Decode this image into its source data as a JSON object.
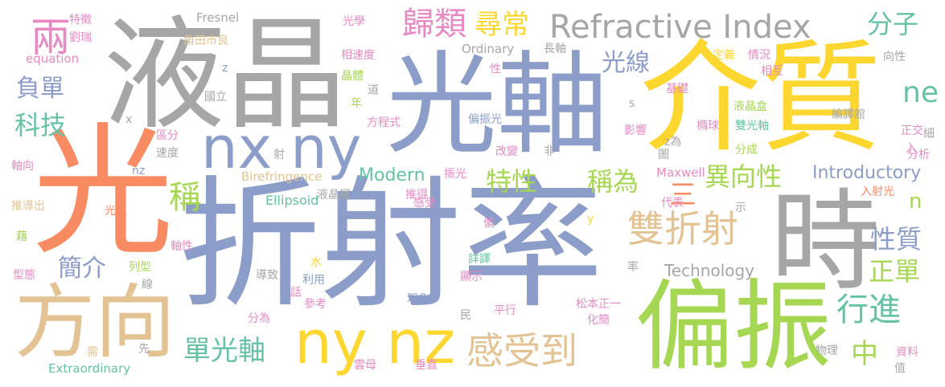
{
  "palette": {
    "blue": "#8b9dc8",
    "gray": "#a6a6a6",
    "orange": "#f98b62",
    "yellow": "#fed630",
    "green": "#a6d752",
    "tan": "#e3c393",
    "teal": "#66c2a5",
    "pink": "#e78ac3"
  },
  "words": {
    "w01": "折射率",
    "w02": "液晶",
    "w03": "光軸",
    "w04": "介質",
    "w05": "光",
    "w06": "時",
    "w07": "偏振",
    "w08": "方向",
    "w09": "nx ny",
    "w10": "ny nz",
    "w11": "雙折射",
    "w12": "感受到",
    "w13": "Refractive Index",
    "w14": "歸類",
    "w15": "尋常",
    "w16": "分子",
    "w17": "兩",
    "w18": "光線",
    "w19": "ne",
    "w20": "負單",
    "w21": "科技",
    "w22": "特性",
    "w23": "稱為",
    "w24": "異向性",
    "w25": "三",
    "w26": "稱",
    "w27": "簡介",
    "w28": "單光軸",
    "w29": "中",
    "w30": "性質",
    "w31": "正單",
    "w32": "行進",
    "w33": "n",
    "w34": "Introductory",
    "w35": "Modern",
    "w36": "Technology",
    "w37": "Ellipsoid",
    "w38": "Birefringence",
    "w39": "Extraordinary",
    "w40": "Fresnel",
    "w41": "equation",
    "w42": "Ordinary",
    "w43": "Maxwell",
    "w44": "特徵",
    "w45": "劉瑞",
    "w46": "角田市良",
    "w47": "光學",
    "w48": "長軸",
    "w49": "相速度",
    "w50": "晶體",
    "w51": "性",
    "w52": "定義",
    "w53": "情況",
    "w54": "相互",
    "w55": "向性",
    "w56": "國立",
    "w57": "道",
    "w58": "基礎",
    "w59": "液晶盒",
    "w60": "編譯館",
    "w61": "偏振光",
    "w62": "方程式",
    "w63": "年",
    "w64": "區分",
    "w65": "速度",
    "w66": "影響",
    "w67": "橢球",
    "w68": "雙光軸",
    "w69": "正交",
    "w70": "細",
    "w71": "射",
    "w72": "改變",
    "w73": "非",
    "w74": "z為",
    "w75": "分成",
    "w76": "入",
    "w77": "分析",
    "w78": "軸向",
    "w79": "振光",
    "w80": "圖",
    "w81": "入射光",
    "w82": "液晶層",
    "w83": "推得",
    "w84": "感受",
    "w85": "代表",
    "w86": "示",
    "w87": "推導出",
    "w88": "光束",
    "w89": "藉",
    "w90": "偏",
    "w91": "軸性",
    "w92": "型態",
    "w93": "列型",
    "w94": "導致",
    "w95": "水",
    "w96": "詳譯",
    "w97": "顯示",
    "w98": "線",
    "w99": "利用",
    "w100": "話",
    "w101": "參考",
    "w102": "現象",
    "w103": "率",
    "w104": "分為",
    "w105": "民",
    "w106": "平行",
    "w107": "松本正一",
    "w108": "化簡",
    "w109": "需",
    "w110": "先",
    "w111": "雲母",
    "w112": "垂直",
    "w113": "物理",
    "w114": "資料",
    "w115": "值",
    "w116": "nz",
    "w117": "x",
    "w118": "z",
    "w119": "s",
    "w120": "y"
  }
}
